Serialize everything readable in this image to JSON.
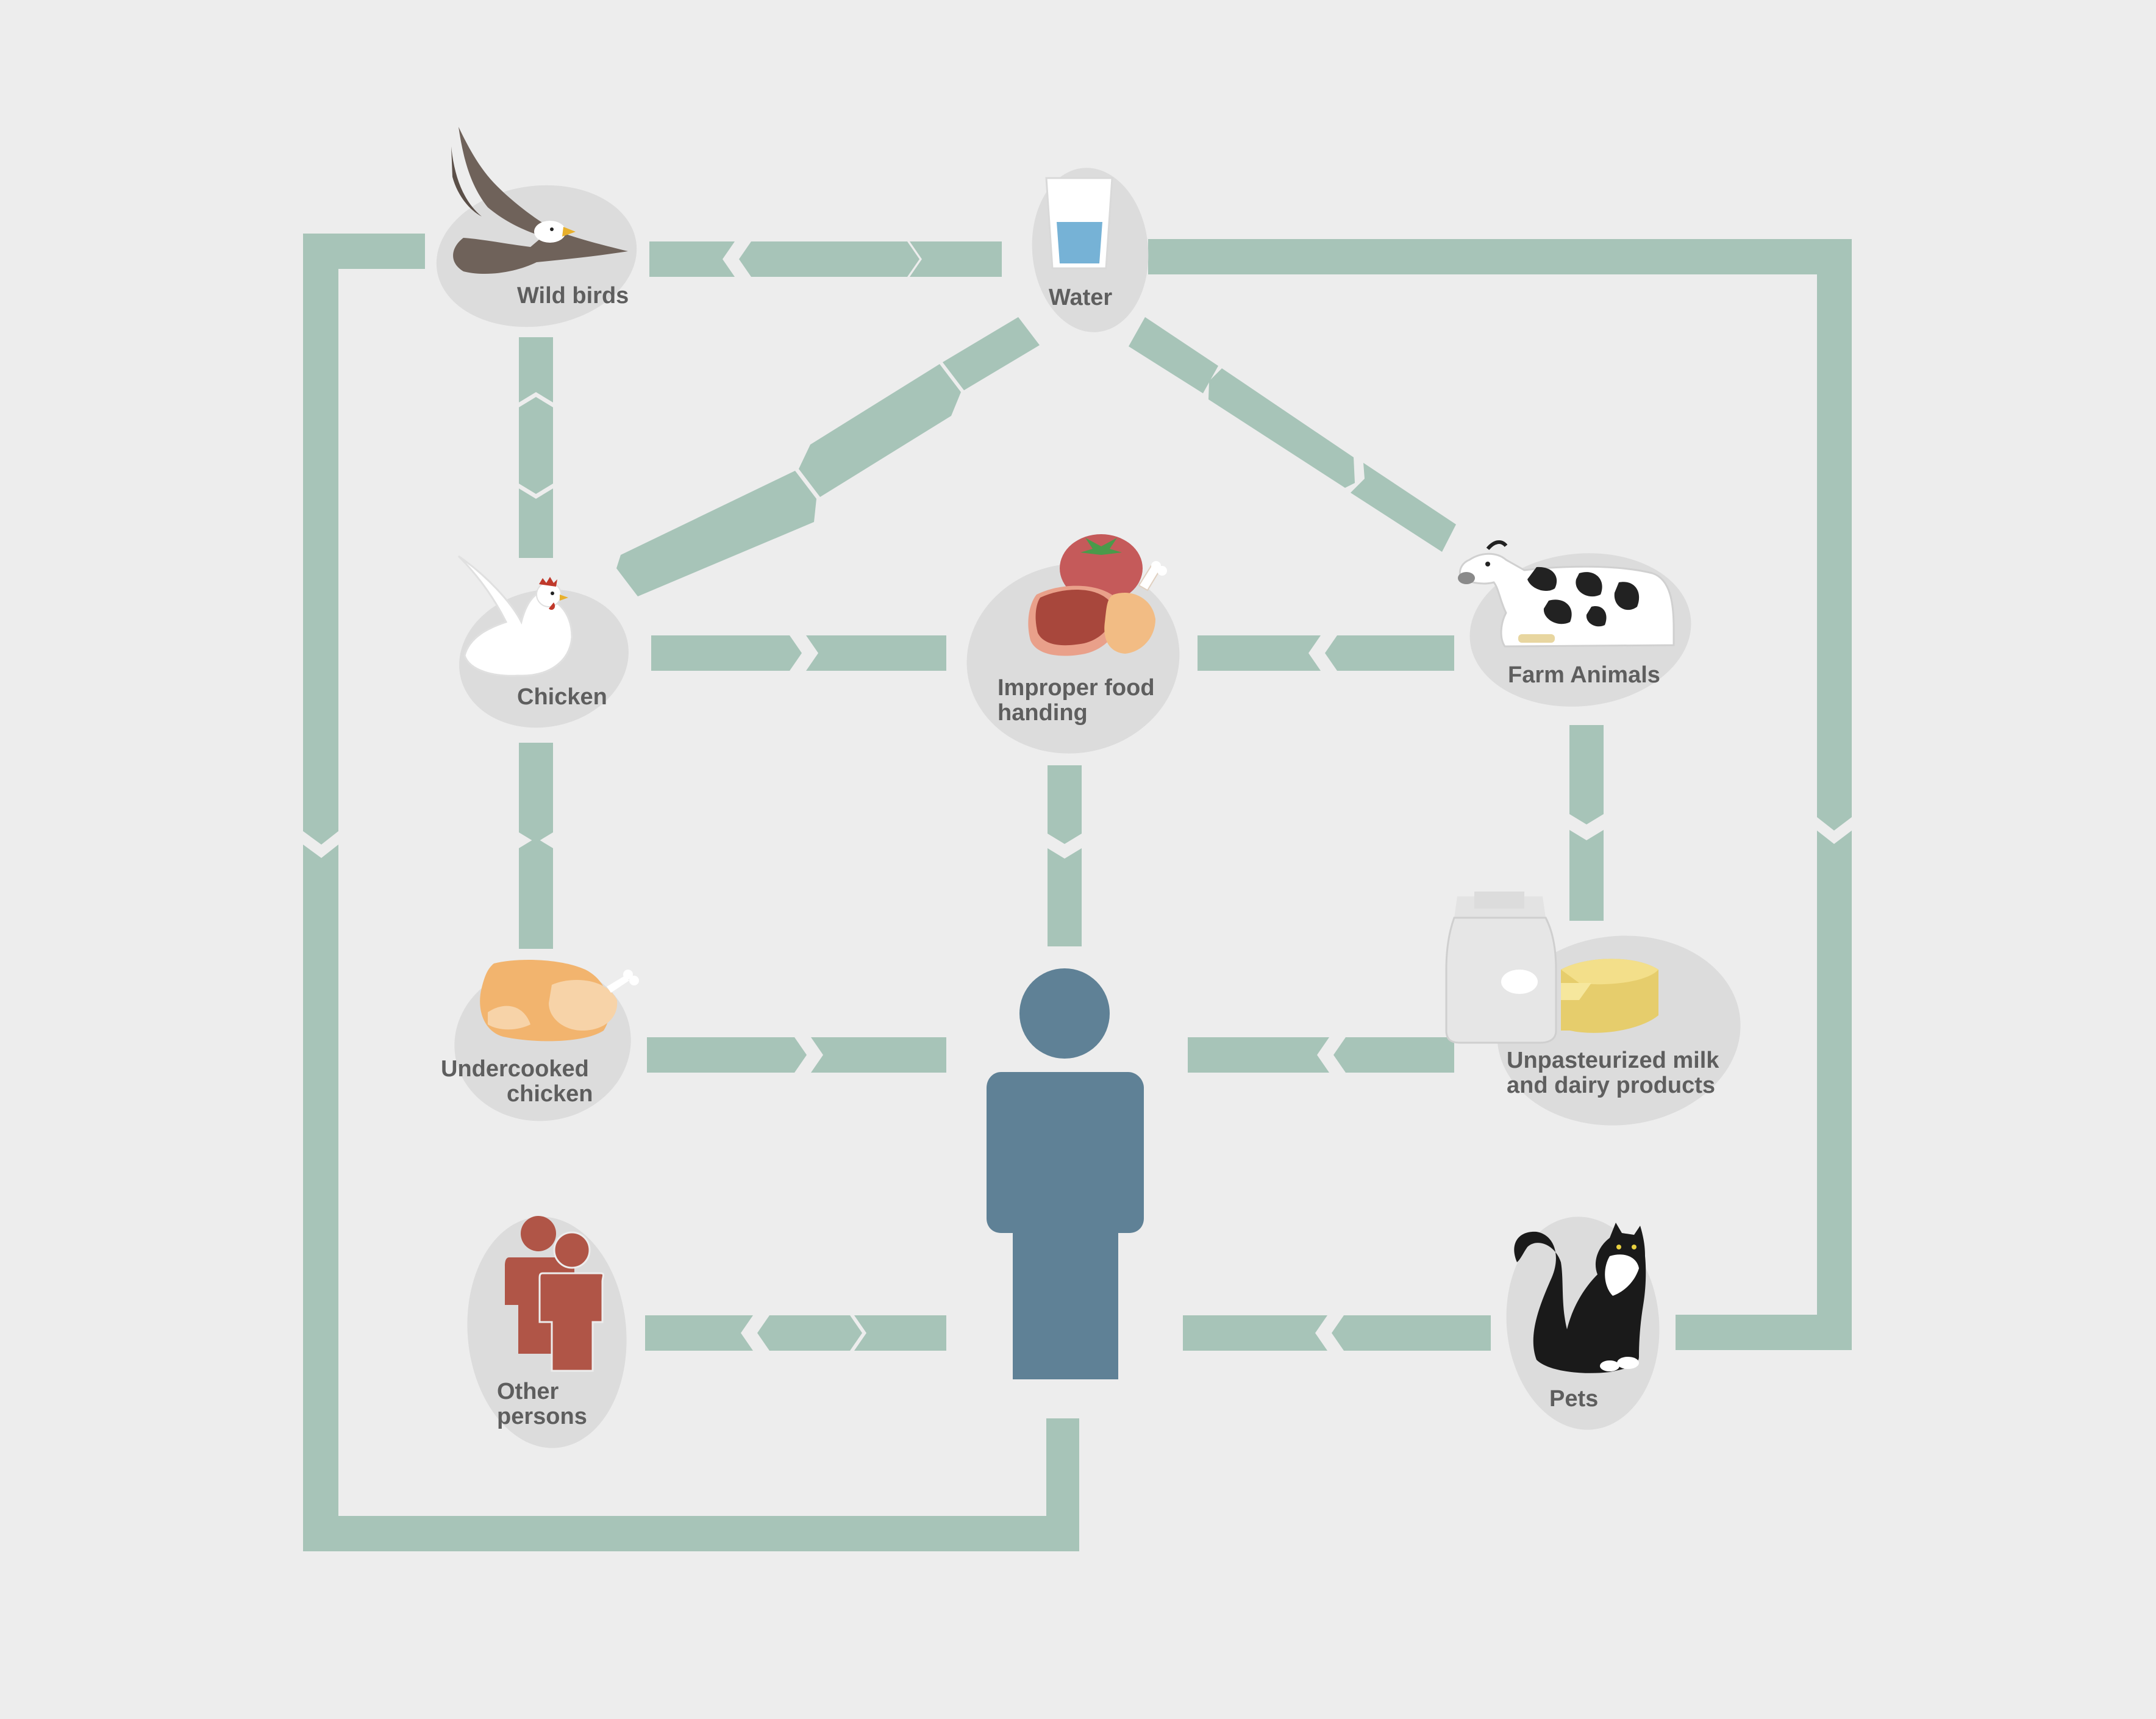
{
  "diagram": {
    "colors": {
      "background": "#ededed",
      "path": "#a7c4b8",
      "blob": "#dcdcdc",
      "person": "#5f8196",
      "others": "#b05547",
      "label": "#5e5e5e"
    },
    "nodes": {
      "wild_birds": {
        "label": "Wild birds",
        "icon": "eagle-icon"
      },
      "water": {
        "label": "Water",
        "icon": "water-glass-icon"
      },
      "chicken": {
        "label": "Chicken",
        "icon": "chicken-icon"
      },
      "improper_food": {
        "label_line1": "Improper food",
        "label_line2": "handing",
        "icon": "food-icon"
      },
      "farm_animals": {
        "label": "Farm Animals",
        "icon": "cow-icon"
      },
      "undercooked_chicken": {
        "label_line1": "Undercooked",
        "label_line2": "chicken",
        "icon": "roast-chicken-icon"
      },
      "dairy": {
        "label_line1": "Unpasteurized milk",
        "label_line2": "and dairy products",
        "icon": "milk-cheese-icon"
      },
      "other_persons": {
        "label_line1": "Other",
        "label_line2": "persons",
        "icon": "other-persons-icon"
      },
      "pets": {
        "label": "Pets",
        "icon": "cat-icon"
      },
      "person": {
        "icon": "person-icon"
      }
    }
  }
}
